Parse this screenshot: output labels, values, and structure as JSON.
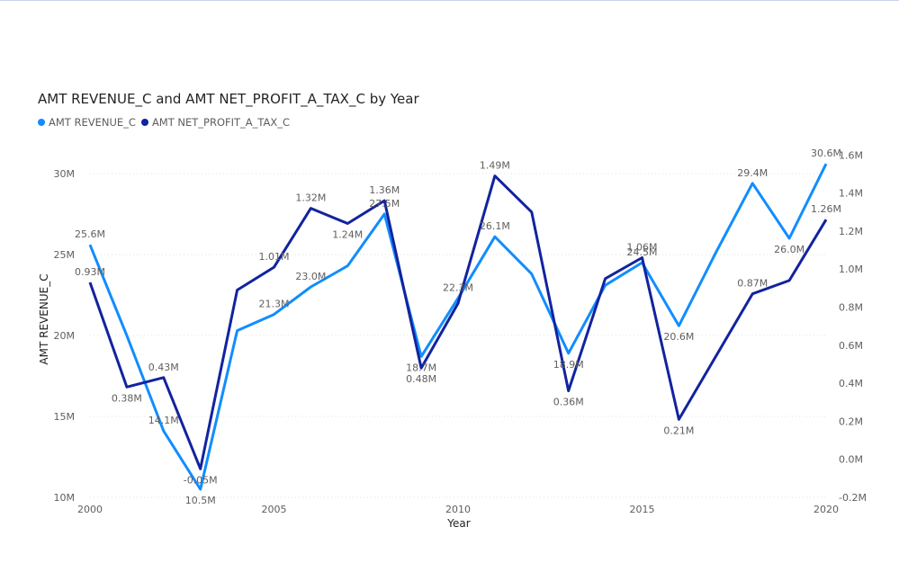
{
  "chart_data": {
    "type": "line",
    "title": "AMT REVENUE_C and AMT NET_PROFIT_A_TAX_C by Year",
    "xlabel": "Year",
    "ylabel": "AMT REVENUE_C",
    "x": [
      2000,
      2001,
      2002,
      2003,
      2004,
      2005,
      2006,
      2007,
      2008,
      2009,
      2010,
      2011,
      2012,
      2013,
      2014,
      2015,
      2016,
      2017,
      2018,
      2019,
      2020
    ],
    "x_ticks": [
      "2000",
      "2005",
      "2010",
      "2015",
      "2020"
    ],
    "y_ticks": [
      "10M",
      "15M",
      "20M",
      "25M",
      "30M"
    ],
    "y2_ticks": [
      "-0.2M",
      "0.0M",
      "0.2M",
      "0.4M",
      "0.6M",
      "0.8M",
      "1.0M",
      "1.2M",
      "1.4M",
      "1.6M"
    ],
    "ylim": [
      10,
      31.5
    ],
    "y2lim": [
      -0.2,
      1.63
    ],
    "grid": true,
    "legend_position": "top-left",
    "series": [
      {
        "name": "AMT REVENUE_C",
        "axis": "left",
        "color": "#118DFF",
        "values": [
          25.6,
          20.0,
          14.1,
          10.5,
          20.3,
          21.3,
          23.0,
          24.3,
          27.5,
          18.7,
          22.3,
          26.1,
          23.8,
          18.9,
          23.1,
          24.5,
          20.6,
          25.1,
          29.4,
          26.0,
          30.6
        ],
        "labels": [
          "25.6M",
          "",
          "14.1M",
          "10.5M",
          "",
          "21.3M",
          "23.0M",
          "",
          "27.5M",
          "18.7M",
          "22.3M",
          "26.1M",
          "",
          "18.9M",
          "",
          "24.5M",
          "20.6M",
          "",
          "29.4M",
          "26.0M",
          "30.6M"
        ]
      },
      {
        "name": "AMT NET_PROFIT_A_TAX_C",
        "axis": "right",
        "color": "#12239E",
        "values": [
          0.93,
          0.38,
          0.43,
          -0.05,
          0.89,
          1.01,
          1.32,
          1.24,
          1.36,
          0.48,
          0.82,
          1.49,
          1.3,
          0.36,
          0.95,
          1.06,
          0.21,
          0.54,
          0.87,
          0.94,
          1.26
        ],
        "labels": [
          "0.93M",
          "0.38M",
          "0.43M",
          "-0.05M",
          "",
          "1.01M",
          "1.32M",
          "1.24M",
          "1.36M",
          "0.48M",
          "",
          "1.49M",
          "",
          "0.36M",
          "",
          "1.06M",
          "0.21M",
          "",
          "0.87M",
          "",
          "1.26M"
        ]
      }
    ]
  }
}
